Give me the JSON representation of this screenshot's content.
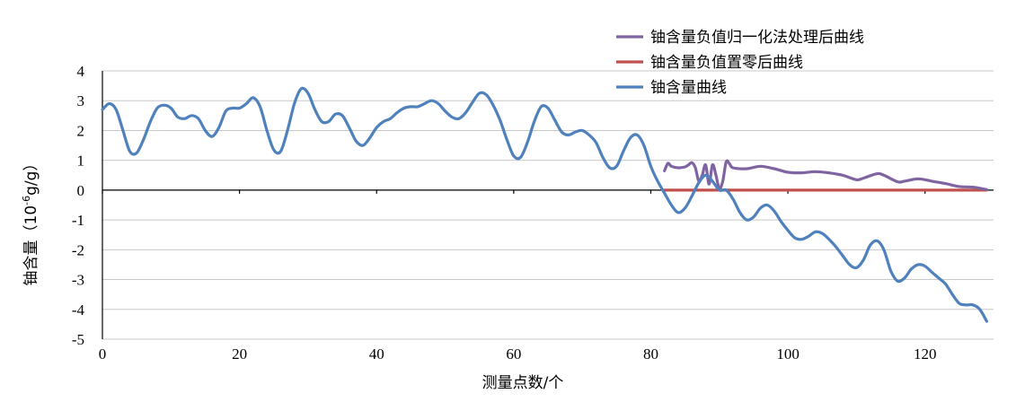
{
  "chart_data": {
    "type": "line",
    "xlabel": "测量点数/个",
    "ylabel": "铀含量（10⁻⁶g/g）",
    "ylabel_parts": [
      "铀含量（10",
      "-6",
      "g/g）"
    ],
    "xlim": [
      0,
      130
    ],
    "ylim": [
      -5,
      4
    ],
    "xticks": [
      0,
      20,
      40,
      60,
      80,
      100,
      120
    ],
    "yticks": [
      4,
      3,
      2,
      1,
      0,
      -1,
      -2,
      -3,
      -4,
      -5
    ],
    "grid": true,
    "legend_position": "top-right",
    "series": [
      {
        "name": "铀含量负值归一化法处理后曲线",
        "color": "#8064a2",
        "x": [
          82,
          82.5,
          83,
          84,
          85,
          85.5,
          86,
          86.5,
          87,
          87.5,
          88,
          88.5,
          89,
          89.5,
          90,
          90.5,
          91,
          91.5,
          92,
          94,
          96,
          98,
          100,
          102,
          104,
          106,
          108,
          110,
          111,
          113,
          114,
          116,
          117,
          119,
          121,
          123,
          125,
          127,
          129
        ],
        "y": [
          0.65,
          0.9,
          0.8,
          0.75,
          0.78,
          0.85,
          0.92,
          0.75,
          0.3,
          0.5,
          0.85,
          0.2,
          0.85,
          0.5,
          0.05,
          0.3,
          0.95,
          0.88,
          0.75,
          0.72,
          0.8,
          0.72,
          0.6,
          0.58,
          0.62,
          0.58,
          0.5,
          0.35,
          0.4,
          0.55,
          0.5,
          0.28,
          0.3,
          0.38,
          0.3,
          0.22,
          0.12,
          0.1,
          0.02
        ]
      },
      {
        "name": "铀含量负值置零后曲线",
        "color": "#c0504d",
        "x": [
          82,
          83,
          85,
          88,
          89,
          90,
          92,
          100,
          110,
          120,
          129
        ],
        "y": [
          0,
          0,
          0,
          0,
          0,
          0,
          0,
          0,
          0,
          0,
          0
        ]
      },
      {
        "name": "铀含量曲线",
        "color": "#4f81bd",
        "x": [
          0,
          1,
          2,
          3,
          4,
          5,
          6,
          7,
          8,
          9,
          10,
          11,
          12,
          13,
          14,
          15,
          16,
          17,
          18,
          19,
          20,
          21,
          22,
          23,
          24,
          25,
          26,
          27,
          28,
          29,
          30,
          31,
          32,
          33,
          34,
          35,
          36,
          37,
          38,
          39,
          40,
          41,
          42,
          43,
          44,
          45,
          46,
          47,
          48,
          49,
          50,
          51,
          52,
          53,
          54,
          55,
          56,
          57,
          58,
          59,
          60,
          61,
          62,
          63,
          64,
          65,
          66,
          67,
          68,
          69,
          70,
          71,
          72,
          73,
          74,
          75,
          76,
          77,
          78,
          79,
          80,
          81,
          82,
          83,
          84,
          85,
          86,
          87,
          88,
          89,
          90,
          91,
          92,
          93,
          94,
          95,
          96,
          97,
          98,
          99,
          100,
          101,
          102,
          103,
          104,
          105,
          106,
          107,
          108,
          109,
          110,
          111,
          112,
          113,
          114,
          115,
          116,
          117,
          118,
          119,
          120,
          121,
          122,
          123,
          124,
          125,
          126,
          127,
          128,
          129
        ],
        "y": [
          2.7,
          2.9,
          2.7,
          2.0,
          1.3,
          1.25,
          1.7,
          2.3,
          2.75,
          2.85,
          2.75,
          2.45,
          2.4,
          2.5,
          2.4,
          2.0,
          1.8,
          2.1,
          2.65,
          2.75,
          2.75,
          2.9,
          3.1,
          2.8,
          2.0,
          1.35,
          1.3,
          2.0,
          2.9,
          3.4,
          3.25,
          2.7,
          2.3,
          2.3,
          2.55,
          2.5,
          2.1,
          1.65,
          1.5,
          1.75,
          2.1,
          2.3,
          2.4,
          2.6,
          2.75,
          2.8,
          2.8,
          2.9,
          3.0,
          2.9,
          2.65,
          2.45,
          2.4,
          2.6,
          2.95,
          3.25,
          3.2,
          2.85,
          2.35,
          1.7,
          1.15,
          1.1,
          1.6,
          2.3,
          2.8,
          2.75,
          2.35,
          1.95,
          1.85,
          1.95,
          2.0,
          1.85,
          1.6,
          1.1,
          0.75,
          0.8,
          1.3,
          1.75,
          1.85,
          1.5,
          0.8,
          0.3,
          -0.1,
          -0.5,
          -0.75,
          -0.6,
          -0.2,
          0.25,
          0.5,
          0.3,
          0.0,
          0.0,
          -0.3,
          -0.75,
          -1.0,
          -0.9,
          -0.6,
          -0.5,
          -0.7,
          -1.05,
          -1.35,
          -1.6,
          -1.65,
          -1.55,
          -1.4,
          -1.45,
          -1.65,
          -1.9,
          -2.2,
          -2.5,
          -2.6,
          -2.35,
          -1.85,
          -1.7,
          -2.0,
          -2.7,
          -3.05,
          -2.95,
          -2.65,
          -2.5,
          -2.55,
          -2.75,
          -2.95,
          -3.15,
          -3.5,
          -3.8,
          -3.85,
          -3.85,
          -4.0,
          -4.4
        ]
      }
    ]
  }
}
